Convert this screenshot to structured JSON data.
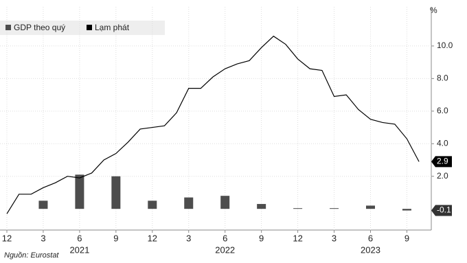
{
  "chart_data": {
    "type": "bar-line",
    "unit": "%",
    "source": "Nguồn: Eurostat",
    "categories": [
      "12",
      null,
      null,
      "3",
      null,
      null,
      "6",
      null,
      null,
      "9",
      null,
      null,
      "12",
      null,
      null,
      "3",
      null,
      null,
      "6",
      null,
      null,
      "9",
      null,
      null,
      "12",
      null,
      null,
      "3",
      null,
      null,
      "6",
      null,
      null,
      "9",
      null
    ],
    "years": [
      "2021",
      "2022",
      "2023"
    ],
    "series": [
      {
        "name": "GDP theo quý",
        "color": "#4d4d4d",
        "kind": "bar",
        "values": [
          null,
          null,
          null,
          0.5,
          null,
          null,
          2.1,
          null,
          null,
          2.0,
          null,
          null,
          0.5,
          null,
          null,
          0.7,
          null,
          null,
          0.8,
          null,
          null,
          0.3,
          null,
          null,
          0.0,
          null,
          null,
          0.0,
          null,
          null,
          0.2,
          null,
          null,
          -0.1,
          null
        ]
      },
      {
        "name": "Lạm phát",
        "color": "#000000",
        "kind": "line",
        "values": [
          -0.3,
          0.9,
          0.9,
          1.3,
          1.6,
          2.0,
          1.9,
          2.2,
          3.0,
          3.4,
          4.1,
          4.9,
          5.0,
          5.1,
          5.9,
          7.4,
          7.4,
          8.1,
          8.6,
          8.9,
          9.1,
          9.9,
          10.6,
          10.1,
          9.2,
          8.6,
          8.5,
          6.9,
          7.0,
          6.1,
          5.5,
          5.3,
          5.2,
          4.3,
          2.9
        ]
      }
    ],
    "ylim": [
      -1.3,
      12.4
    ],
    "yticks": [
      {
        "value": 2,
        "label": "2.0"
      },
      {
        "value": 4,
        "label": "4.0"
      },
      {
        "value": 6,
        "label": "6.0"
      },
      {
        "value": 8,
        "label": "8.0"
      },
      {
        "value": 10,
        "label": "10.0"
      }
    ],
    "grid": true
  }
}
